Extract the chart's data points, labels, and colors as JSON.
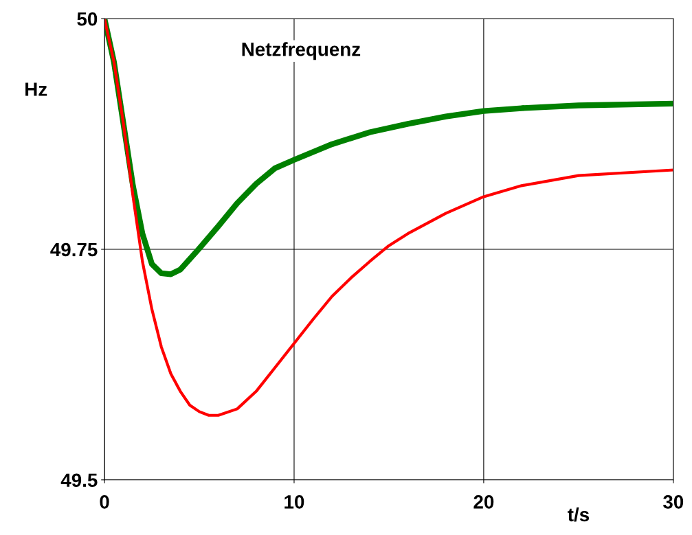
{
  "chart_data": {
    "type": "line",
    "title": "Netzfrequenz",
    "xlabel": "t/s",
    "ylabel": "Hz",
    "xlim": [
      0,
      30
    ],
    "xticks": [
      0,
      10,
      20,
      30
    ],
    "ylim": [
      49.5,
      50
    ],
    "yticks": [
      49.5,
      49.75,
      50
    ],
    "grid": true,
    "marker": "none",
    "line_style": "solid",
    "series": [
      {
        "color": "#008000",
        "x": [
          0,
          0.5,
          1,
          1.5,
          2,
          2.5,
          3,
          3.5,
          4,
          5,
          6,
          7,
          8,
          9,
          10,
          12,
          14,
          16,
          18,
          20,
          22,
          25,
          30
        ],
        "values": [
          50,
          49.953,
          49.886,
          49.819,
          49.767,
          49.734,
          49.724,
          49.723,
          49.728,
          49.751,
          49.775,
          49.8,
          49.821,
          49.838,
          49.847,
          49.864,
          49.877,
          49.886,
          49.894,
          49.9,
          49.903,
          49.906,
          49.908
        ]
      },
      {
        "color": "#ff0000",
        "x": [
          0,
          0.5,
          1,
          1.5,
          2,
          2.5,
          3,
          3.5,
          4,
          4.5,
          5,
          5.5,
          6,
          7,
          8,
          9,
          10,
          11,
          12,
          13,
          14,
          15,
          16,
          18,
          20,
          22,
          25,
          30
        ],
        "values": [
          50,
          49.953,
          49.886,
          49.808,
          49.737,
          49.685,
          49.644,
          49.615,
          49.596,
          49.581,
          49.574,
          49.57,
          49.57,
          49.577,
          49.596,
          49.622,
          49.648,
          49.674,
          49.699,
          49.719,
          49.737,
          49.754,
          49.767,
          49.789,
          49.807,
          49.819,
          49.83,
          49.836
        ]
      }
    ]
  }
}
